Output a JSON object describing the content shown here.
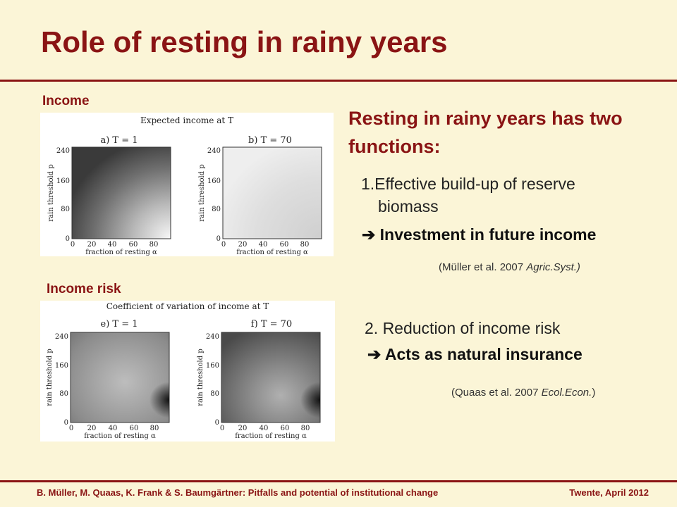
{
  "slide": {
    "title": "Role of resting in rainy years"
  },
  "left": {
    "income_label": "Income",
    "income_risk_label": "Income risk",
    "fig1": {
      "title": "Expected income at T",
      "panel_a": "a) T = 1",
      "panel_b": "b) T = 70",
      "ylabel": "rain threshold p",
      "xlabel": "fraction of resting α",
      "yticks": [
        "240",
        "160",
        "80",
        "0"
      ],
      "xticks": [
        "0",
        "20",
        "40",
        "60",
        "80"
      ]
    },
    "fig2": {
      "title": "Coefficient of variation of income at T",
      "panel_e": "e) T = 1",
      "panel_f": "f) T = 70",
      "ylabel": "rain threshold p",
      "xlabel": "fraction of resting α",
      "yticks": [
        "240",
        "160",
        "80",
        "0"
      ],
      "xticks": [
        "0",
        "20",
        "40",
        "60",
        "80"
      ]
    }
  },
  "right": {
    "heading": "Resting in rainy years has two functions:",
    "point1_line1": "1.Effective build-up of reserve",
    "point1_line2": "biomass",
    "point1_result": "Investment in future income",
    "cite1_pre": "(Müller et al. 2007 ",
    "cite1_journal": "Agric.Syst.)",
    "point2": "2. Reduction of income risk",
    "point2_result": "Acts as natural insurance",
    "cite2_pre": "(Quaas et al. 2007 ",
    "cite2_journal": "Ecol.Econ.",
    "cite2_post": ")"
  },
  "footer": {
    "authors": "B. Müller, M. Quaas, K. Frank & S. Baumgärtner: Pitfalls and potential of institutional change",
    "event": "Twente, April 2012"
  },
  "colors": {
    "accent": "#8a1414",
    "background": "#fbf5d7"
  },
  "icons": {
    "arrow": "right-arrow-icon"
  }
}
